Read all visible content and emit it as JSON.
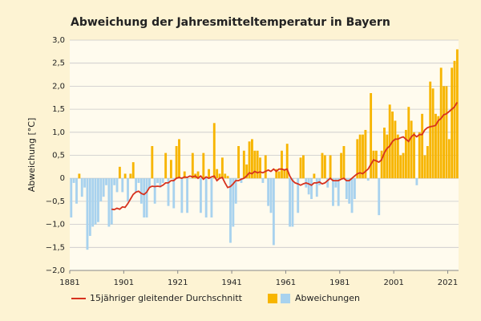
{
  "chart_data": {
    "type": "bar",
    "title": "Abweichung der Jahresmitteltemperatur in Bayern",
    "y_label": "Abweichung [°C]",
    "x": [
      1881,
      1882,
      1883,
      1884,
      1885,
      1886,
      1887,
      1888,
      1889,
      1890,
      1891,
      1892,
      1893,
      1894,
      1895,
      1896,
      1897,
      1898,
      1899,
      1900,
      1901,
      1902,
      1903,
      1904,
      1905,
      1906,
      1907,
      1908,
      1909,
      1910,
      1911,
      1912,
      1913,
      1914,
      1915,
      1916,
      1917,
      1918,
      1919,
      1920,
      1921,
      1922,
      1923,
      1924,
      1925,
      1926,
      1927,
      1928,
      1929,
      1930,
      1931,
      1932,
      1933,
      1934,
      1935,
      1936,
      1937,
      1938,
      1939,
      1940,
      1941,
      1942,
      1943,
      1944,
      1945,
      1946,
      1947,
      1948,
      1949,
      1950,
      1951,
      1952,
      1953,
      1954,
      1955,
      1956,
      1957,
      1958,
      1959,
      1960,
      1961,
      1962,
      1963,
      1964,
      1965,
      1966,
      1967,
      1968,
      1969,
      1970,
      1971,
      1972,
      1973,
      1974,
      1975,
      1976,
      1977,
      1978,
      1979,
      1980,
      1981,
      1982,
      1983,
      1984,
      1985,
      1986,
      1987,
      1988,
      1989,
      1990,
      1991,
      1992,
      1993,
      1994,
      1995,
      1996,
      1997,
      1998,
      1999,
      2000,
      2001,
      2002,
      2003,
      2004,
      2005,
      2006,
      2007,
      2008,
      2009,
      2010,
      2011,
      2012,
      2013,
      2014,
      2015,
      2016,
      2017,
      2018,
      2019,
      2020,
      2021,
      2022,
      2023,
      2024
    ],
    "series": [
      {
        "name": "Abweichungen",
        "color": "#f7b500",
        "negative_color": "#a8d2ee",
        "values": [
          -0.85,
          -0.1,
          -0.55,
          0.1,
          -0.4,
          -0.2,
          -1.55,
          -1.25,
          -1.05,
          -1.0,
          -0.95,
          -0.5,
          -0.4,
          -0.15,
          -1.05,
          -1.0,
          -0.15,
          -0.3,
          0.25,
          -0.3,
          0.1,
          -0.5,
          0.1,
          0.35,
          -0.3,
          -0.1,
          -0.55,
          -0.85,
          -0.85,
          -0.2,
          0.7,
          -0.55,
          -0.1,
          -0.2,
          -0.1,
          0.55,
          -0.6,
          0.4,
          -0.65,
          0.7,
          0.85,
          -0.75,
          0.15,
          -0.75,
          0.0,
          0.55,
          0.1,
          0.15,
          -0.75,
          0.55,
          -0.85,
          0.2,
          -0.85,
          1.2,
          0.2,
          0.1,
          0.45,
          0.1,
          0.05,
          -1.4,
          -1.05,
          -0.55,
          0.7,
          -0.1,
          0.6,
          0.3,
          0.8,
          0.85,
          0.6,
          0.6,
          0.45,
          -0.1,
          0.5,
          -0.6,
          -0.75,
          -1.45,
          0.2,
          0.15,
          0.6,
          0.2,
          0.75,
          -1.05,
          -1.05,
          0.0,
          -0.75,
          0.45,
          0.5,
          -0.2,
          -0.35,
          -0.45,
          0.1,
          -0.4,
          -0.15,
          0.55,
          0.5,
          -0.2,
          0.5,
          -0.6,
          -0.2,
          -0.6,
          0.55,
          0.7,
          -0.45,
          -0.55,
          -0.75,
          -0.45,
          0.85,
          0.95,
          0.95,
          1.05,
          -0.05,
          1.85,
          0.6,
          0.6,
          -0.8,
          0.6,
          1.1,
          0.95,
          1.6,
          1.45,
          1.25,
          0.95,
          0.5,
          0.55,
          1.05,
          1.55,
          1.25,
          1.0,
          -0.15,
          1.0,
          1.4,
          0.5,
          0.7,
          2.1,
          1.95,
          1.4,
          1.35,
          2.4,
          2.0,
          2.0,
          0.85,
          2.4,
          2.55,
          2.8
        ]
      },
      {
        "name": "15jähriger gleitender Durchschnitt",
        "color": "#d7321e",
        "kind": "line",
        "x": [
          1896,
          1897,
          1898,
          1899,
          1900,
          1901,
          1902,
          1903,
          1904,
          1905,
          1906,
          1907,
          1908,
          1909,
          1910,
          1911,
          1912,
          1913,
          1914,
          1915,
          1916,
          1917,
          1918,
          1919,
          1920,
          1921,
          1922,
          1923,
          1924,
          1925,
          1926,
          1927,
          1928,
          1929,
          1930,
          1931,
          1932,
          1933,
          1934,
          1935,
          1936,
          1937,
          1938,
          1939,
          1940,
          1941,
          1942,
          1943,
          1944,
          1945,
          1946,
          1947,
          1948,
          1949,
          1950,
          1951,
          1952,
          1953,
          1954,
          1955,
          1956,
          1957,
          1958,
          1959,
          1960,
          1961,
          1962,
          1963,
          1964,
          1965,
          1966,
          1967,
          1968,
          1969,
          1970,
          1971,
          1972,
          1973,
          1974,
          1975,
          1976,
          1977,
          1978,
          1979,
          1980,
          1981,
          1982,
          1983,
          1984,
          1985,
          1986,
          1987,
          1988,
          1989,
          1990,
          1991,
          1992,
          1993,
          1994,
          1995,
          1996,
          1997,
          1998,
          1999,
          2000,
          2001,
          2002,
          2003,
          2004,
          2005,
          2006,
          2007,
          2008,
          2009,
          2010,
          2011,
          2012,
          2013,
          2014,
          2015,
          2016,
          2017,
          2018,
          2019,
          2020,
          2021,
          2022,
          2023,
          2024
        ],
        "values": [
          -0.67,
          -0.68,
          -0.65,
          -0.67,
          -0.62,
          -0.63,
          -0.55,
          -0.45,
          -0.35,
          -0.3,
          -0.28,
          -0.33,
          -0.35,
          -0.3,
          -0.2,
          -0.17,
          -0.18,
          -0.17,
          -0.18,
          -0.15,
          -0.1,
          -0.1,
          -0.05,
          -0.05,
          0.0,
          0.02,
          0.0,
          0.03,
          0.02,
          0.05,
          0.03,
          0.05,
          0.0,
          0.05,
          -0.02,
          0.03,
          0.0,
          0.03,
          0.05,
          -0.05,
          0.0,
          0.02,
          -0.1,
          -0.2,
          -0.18,
          -0.12,
          -0.05,
          -0.05,
          -0.02,
          0.0,
          0.05,
          0.12,
          0.1,
          0.15,
          0.12,
          0.14,
          0.12,
          0.15,
          0.18,
          0.15,
          0.2,
          0.15,
          0.2,
          0.2,
          0.18,
          0.2,
          0.05,
          -0.05,
          -0.1,
          -0.12,
          -0.15,
          -0.12,
          -0.1,
          -0.12,
          -0.15,
          -0.1,
          -0.1,
          -0.08,
          -0.12,
          -0.1,
          -0.05,
          0.0,
          -0.05,
          -0.05,
          -0.05,
          -0.02,
          0.0,
          -0.05,
          -0.05,
          0.0,
          0.05,
          0.1,
          0.12,
          0.1,
          0.15,
          0.2,
          0.3,
          0.4,
          0.38,
          0.35,
          0.4,
          0.55,
          0.65,
          0.7,
          0.8,
          0.85,
          0.85,
          0.88,
          0.9,
          0.85,
          0.8,
          0.9,
          0.95,
          0.9,
          0.95,
          0.95,
          1.05,
          1.1,
          1.12,
          1.13,
          1.15,
          1.25,
          1.3,
          1.38,
          1.4,
          1.45,
          1.5,
          1.55,
          1.65
        ]
      }
    ],
    "xlim": [
      1881,
      2025
    ],
    "xticks": [
      1881,
      1901,
      1921,
      1941,
      1961,
      1981,
      2001,
      2021
    ],
    "ylim": [
      -2.0,
      3.0
    ],
    "yticks": [
      {
        "value": -2.0,
        "label": "−2,0"
      },
      {
        "value": -1.5,
        "label": "−1,5"
      },
      {
        "value": -1.0,
        "label": "−1,0"
      },
      {
        "value": -0.5,
        "label": "−0,5"
      },
      0,
      {
        "value": 0.5,
        "label": "0,5"
      },
      {
        "value": 1.0,
        "label": "1,0"
      },
      {
        "value": 1.5,
        "label": "1,5"
      },
      {
        "value": 2.0,
        "label": "2,0"
      },
      {
        "value": 2.5,
        "label": "2,5"
      },
      {
        "value": 3.0,
        "label": "3,0"
      }
    ],
    "grid": true
  }
}
